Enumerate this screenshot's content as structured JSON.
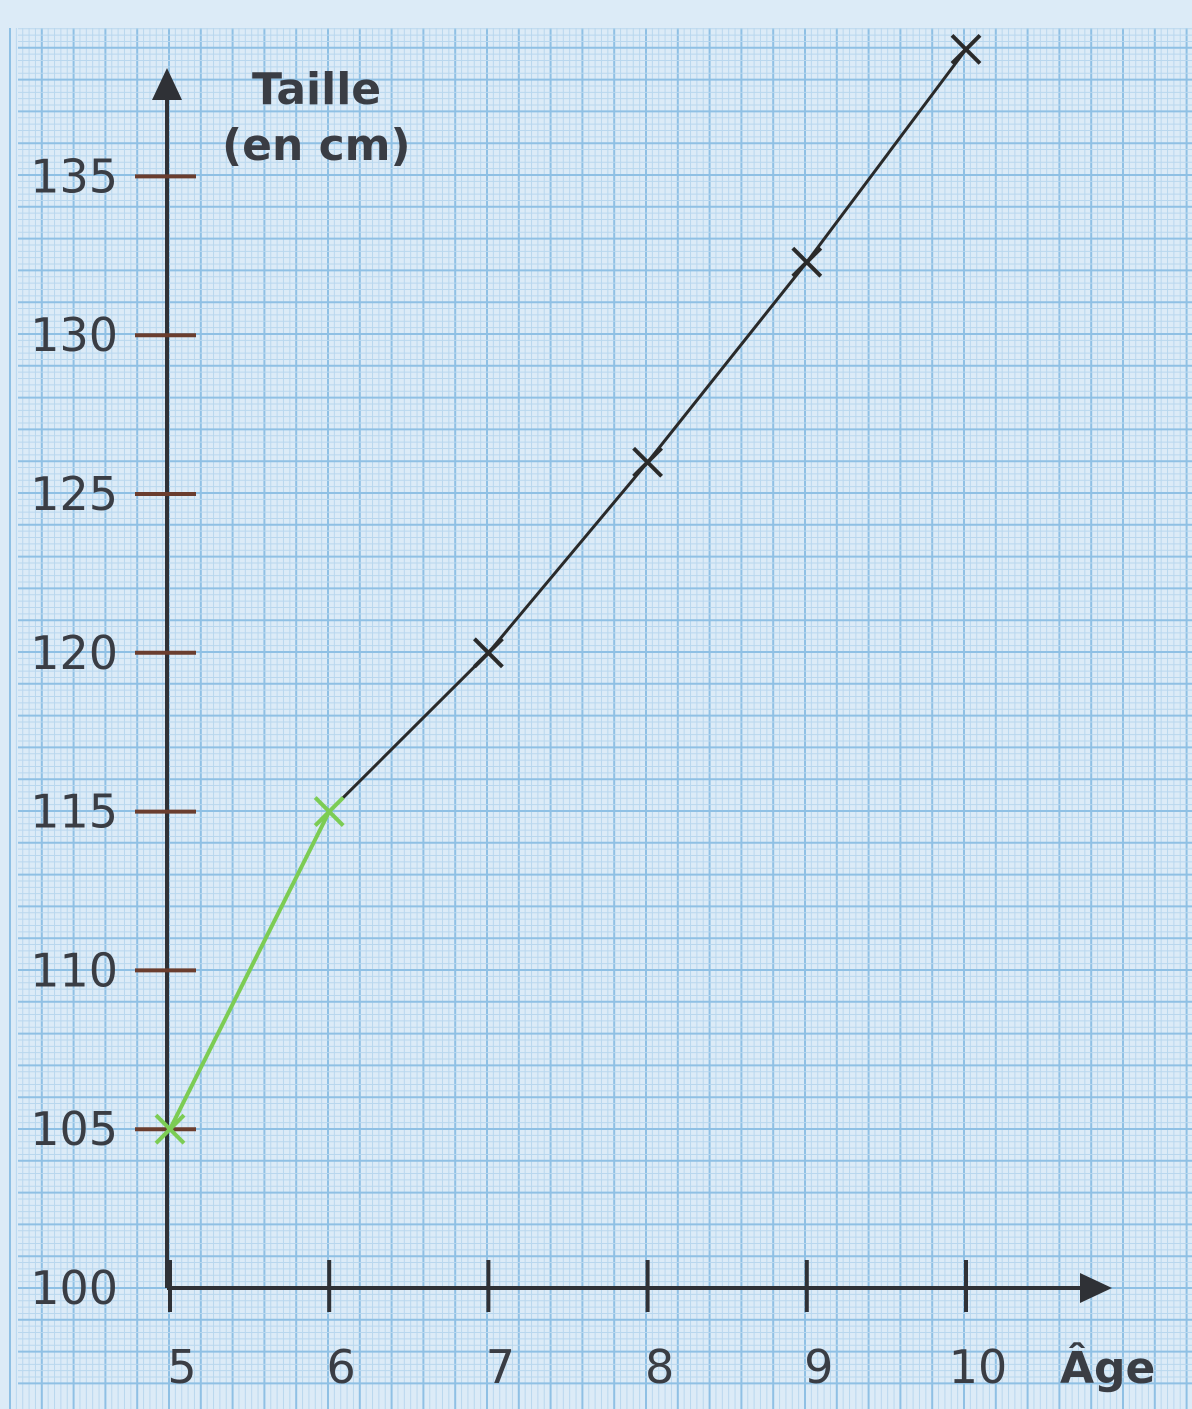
{
  "chart_data": {
    "type": "line",
    "title": "",
    "ylabel_line1": "Taille",
    "ylabel_line2": "(en cm)",
    "xlabel": "Âge",
    "x_ticks": [
      "5",
      "6",
      "7",
      "8",
      "9",
      "10"
    ],
    "y_ticks": [
      "100",
      "105",
      "110",
      "115",
      "120",
      "125",
      "130",
      "135"
    ],
    "xlim": [
      5,
      10.8
    ],
    "ylim": [
      100,
      138
    ],
    "grid": true,
    "colors": {
      "paper": "#dcebf7",
      "grid_minor": "#b9d7ee",
      "grid_major": "#8fc0e4",
      "axis": "#2f3136",
      "tick_mark": "#6a3d2e",
      "green_segment": "#7ccc54",
      "black_segment": "#2a2a2a"
    },
    "series": [
      {
        "color": "#7ccc54",
        "x": [
          5,
          6
        ],
        "y": [
          105,
          115
        ]
      },
      {
        "color": "#2a2a2a",
        "x": [
          6,
          7,
          8,
          9,
          10
        ],
        "y": [
          115,
          120,
          126,
          132.3,
          139
        ]
      }
    ]
  }
}
